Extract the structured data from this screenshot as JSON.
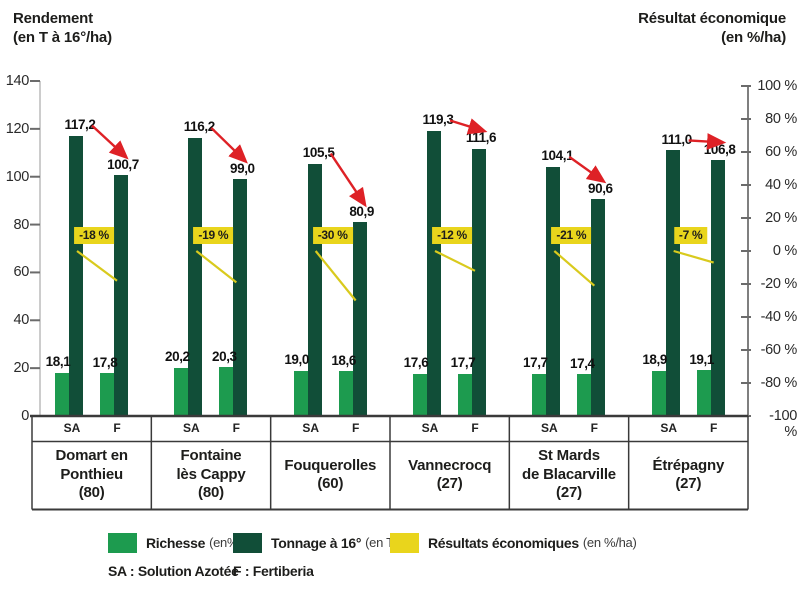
{
  "titles": {
    "left": [
      "Rendement",
      "(en T à 16°/ha)"
    ],
    "right": [
      "Résultat économique",
      "(en %/ha)"
    ]
  },
  "colors": {
    "richesse": "#1d9b4f",
    "tonnage": "#114e38",
    "eco_fill": "#e9d51c",
    "eco_line": "#d9ca1d",
    "arrow": "#de2126",
    "line": "#3a3a3a",
    "axis_light": "#9a9a9a",
    "tick": "#6b6b6b"
  },
  "chart_data": {
    "type": "bar",
    "title": "",
    "left_axis": {
      "label": "Rendement (en T à 16°/ha)",
      "ticks": [
        0,
        20,
        40,
        60,
        80,
        100,
        120,
        140
      ],
      "lim": [
        0,
        140
      ]
    },
    "right_axis": {
      "label": "Résultat économique (en %/ha)",
      "ticks": [
        "100 %",
        "80 %",
        "60 %",
        "40 %",
        "20 %",
        "0 %",
        "-20 %",
        "-40 %",
        "-60 %",
        "-80 %",
        "-100 %"
      ],
      "lim": [
        -100,
        100
      ]
    },
    "bar_sublabels": [
      "SA",
      "F"
    ],
    "categories": [
      "Domart en Ponthieu (80)",
      "Fontaine lès Cappy (80)",
      "Fouquerolles (60)",
      "Vannecrocq (27)",
      "St Mards de Blacarville (27)",
      "Étrépagny (27)"
    ],
    "category_lines": [
      [
        "Domart en",
        "Ponthieu",
        "(80)"
      ],
      [
        "Fontaine",
        "lès Cappy",
        "(80)"
      ],
      [
        "Fouquerolles",
        "(60)"
      ],
      [
        "Vannecrocq",
        "(27)"
      ],
      [
        "St Mards",
        "de Blacarville",
        "(27)"
      ],
      [
        "Étrépagny",
        "(27)"
      ]
    ],
    "series": [
      {
        "name": "Richesse",
        "unit": "en%",
        "bar": "SA",
        "values": [
          18.1,
          20.2,
          19.0,
          17.6,
          17.7,
          18.9
        ],
        "labels": [
          "18,1",
          "20,2",
          "19,0",
          "17,6",
          "17,7",
          "18,9"
        ]
      },
      {
        "name": "Richesse",
        "unit": "en%",
        "bar": "F",
        "values": [
          17.8,
          20.3,
          18.6,
          17.7,
          17.4,
          19.1
        ],
        "labels": [
          "17,8",
          "20,3",
          "18,6",
          "17,7",
          "17,4",
          "19,1"
        ]
      },
      {
        "name": "Tonnage à 16°",
        "unit": "en T/ha",
        "bar": "SA",
        "values": [
          117.2,
          116.2,
          105.5,
          119.3,
          104.1,
          111.0
        ],
        "labels": [
          "117,2",
          "116,2",
          "105,5",
          "119,3",
          "104,1",
          "111,0"
        ]
      },
      {
        "name": "Tonnage à 16°",
        "unit": "en T/ha",
        "bar": "F",
        "values": [
          100.7,
          99.0,
          80.9,
          111.6,
          90.6,
          106.8
        ],
        "labels": [
          "100,7",
          "99,0",
          "80,9",
          "111,6",
          "90,6",
          "106,8"
        ]
      },
      {
        "name": "Résultats économiques",
        "unit": "en %/ha",
        "values": [
          -18,
          -19,
          -30,
          -12,
          -21,
          -7
        ],
        "labels": [
          "-18 %",
          "-19 %",
          "-30 %",
          "-12 %",
          "-21 %",
          "-7 %"
        ]
      }
    ]
  },
  "legend": {
    "items": [
      {
        "swatch": "richesse",
        "label": "Richesse",
        "unit": "(en%)"
      },
      {
        "swatch": "tonnage",
        "label": "Tonnage à 16°",
        "unit": "(en T/ha)"
      },
      {
        "swatch": "eco_fill",
        "label": "Résultats économiques",
        "unit": "(en %/ha)"
      }
    ],
    "abbreviations": [
      "SA : Solution Azotée",
      "F : Fertiberia"
    ]
  }
}
